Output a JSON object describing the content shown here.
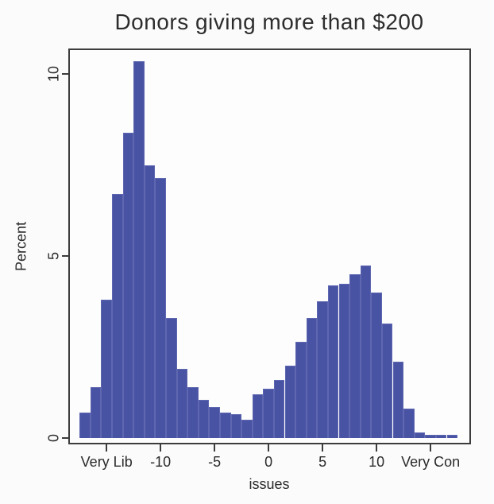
{
  "chart_data": {
    "type": "bar",
    "subtype": "histogram",
    "title": "Donors giving more than $200",
    "xlabel": "issues",
    "ylabel": "Percent",
    "grid": false,
    "legend_position": "none",
    "xlim": [
      -18.4,
      18.6
    ],
    "ylim": [
      -0.13,
      10.66
    ],
    "bin_width": 1,
    "x_ticks": [
      {
        "value": -15,
        "label": "Very Lib"
      },
      {
        "value": -10,
        "label": "-10"
      },
      {
        "value": -5,
        "label": "-5"
      },
      {
        "value": 0,
        "label": "0"
      },
      {
        "value": 5,
        "label": "5"
      },
      {
        "value": 10,
        "label": "10"
      },
      {
        "value": 15,
        "label": "Very Con"
      }
    ],
    "y_ticks": [
      {
        "value": 0,
        "label": "0"
      },
      {
        "value": 5,
        "label": "5"
      },
      {
        "value": 10,
        "label": "10"
      }
    ],
    "bins": [
      {
        "center": -17,
        "percent": 0.7
      },
      {
        "center": -16,
        "percent": 1.4
      },
      {
        "center": -15,
        "percent": 3.8
      },
      {
        "center": -14,
        "percent": 6.7
      },
      {
        "center": -13,
        "percent": 8.4
      },
      {
        "center": -12,
        "percent": 10.35
      },
      {
        "center": -11,
        "percent": 7.5
      },
      {
        "center": -10,
        "percent": 7.15
      },
      {
        "center": -9,
        "percent": 3.3
      },
      {
        "center": -8,
        "percent": 1.9
      },
      {
        "center": -7,
        "percent": 1.4
      },
      {
        "center": -6,
        "percent": 1.05
      },
      {
        "center": -5,
        "percent": 0.85
      },
      {
        "center": -4,
        "percent": 0.7
      },
      {
        "center": -3,
        "percent": 0.65
      },
      {
        "center": -2,
        "percent": 0.5
      },
      {
        "center": -1,
        "percent": 1.2
      },
      {
        "center": 0,
        "percent": 1.35
      },
      {
        "center": 1,
        "percent": 1.6
      },
      {
        "center": 2,
        "percent": 2.0
      },
      {
        "center": 3,
        "percent": 2.65
      },
      {
        "center": 4,
        "percent": 3.3
      },
      {
        "center": 5,
        "percent": 3.75
      },
      {
        "center": 6,
        "percent": 4.2
      },
      {
        "center": 7,
        "percent": 4.25
      },
      {
        "center": 8,
        "percent": 4.5
      },
      {
        "center": 9,
        "percent": 4.75
      },
      {
        "center": 10,
        "percent": 4.0
      },
      {
        "center": 11,
        "percent": 3.15
      },
      {
        "center": 12,
        "percent": 2.1
      },
      {
        "center": 13,
        "percent": 0.8
      },
      {
        "center": 14,
        "percent": 0.15
      },
      {
        "center": 15,
        "percent": 0.1
      },
      {
        "center": 16,
        "percent": 0.1
      },
      {
        "center": 17,
        "percent": 0.1
      }
    ],
    "colors": {
      "bar_fill": "#4953a4",
      "bar_edge": "#5e67b0",
      "axis": "#3c3c3c",
      "text": "#2b2b2b",
      "background": "#fdfdfd"
    }
  }
}
